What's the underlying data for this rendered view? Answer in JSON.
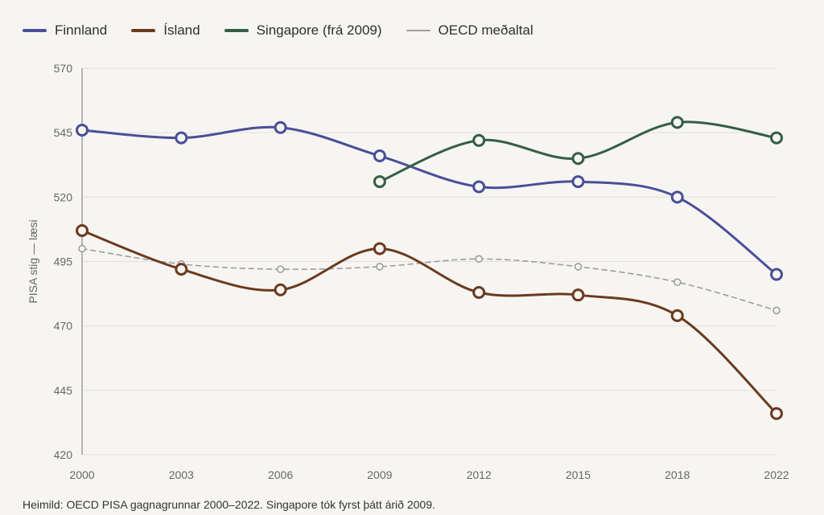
{
  "chart_data": {
    "type": "line",
    "title": "",
    "ylabel": "PISA stig — læsi",
    "xlabel": "",
    "categories": [
      "2000",
      "2003",
      "2006",
      "2009",
      "2012",
      "2015",
      "2018",
      "2022"
    ],
    "ylim": [
      420,
      570
    ],
    "yticks": [
      420,
      445,
      470,
      495,
      520,
      545,
      570
    ],
    "grid": true,
    "legend_position": "top",
    "series": [
      {
        "name": "Finnland",
        "color": "#4a4f98",
        "style": "solid",
        "values": [
          546,
          543,
          547,
          536,
          524,
          526,
          520,
          490
        ]
      },
      {
        "name": "Ísland",
        "color": "#6b3a1f",
        "style": "solid",
        "values": [
          507,
          492,
          484,
          500,
          483,
          482,
          474,
          436
        ]
      },
      {
        "name": "Singapore (frá 2009)",
        "color": "#355e45",
        "style": "solid",
        "values": [
          null,
          null,
          null,
          526,
          542,
          535,
          549,
          543
        ]
      },
      {
        "name": "OECD meðaltal",
        "color": "#9e9e9e",
        "style": "dashed",
        "values": [
          500,
          494,
          492,
          493,
          496,
          493,
          487,
          476
        ]
      }
    ]
  },
  "source_note": "Heimild: OECD PISA gagnagrunnar 2000–2022. Singapore tók fyrst þátt árið 2009."
}
